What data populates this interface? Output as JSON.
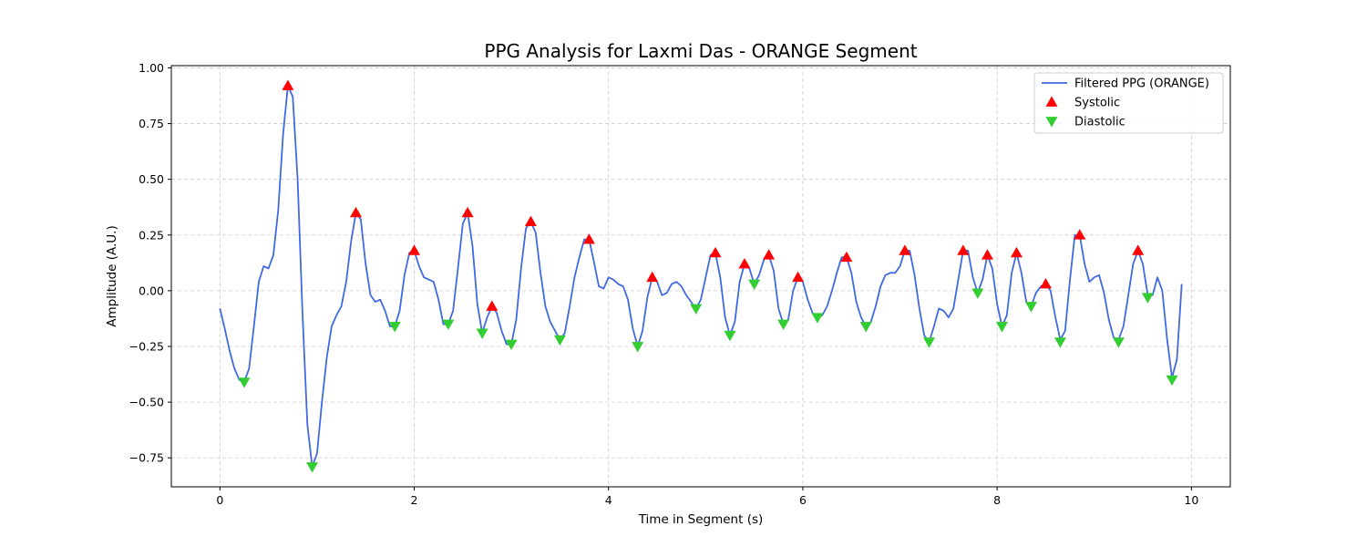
{
  "chart_data": {
    "type": "line",
    "title": "PPG Analysis for Laxmi Das - ORANGE Segment",
    "xlabel": "Time in Segment (s)",
    "ylabel": "Amplitude (A.U.)",
    "xlim": [
      -0.5,
      10.4
    ],
    "ylim": [
      -0.88,
      1.01
    ],
    "x_ticks": [
      0,
      2,
      4,
      6,
      8,
      10
    ],
    "x_tick_labels": [
      "0",
      "2",
      "4",
      "6",
      "8",
      "10"
    ],
    "y_ticks": [
      -0.75,
      -0.5,
      -0.25,
      0.0,
      0.25,
      0.5,
      0.75,
      1.0
    ],
    "y_tick_labels": [
      "−0.75",
      "−0.50",
      "−0.25",
      "0.00",
      "0.25",
      "0.50",
      "0.75",
      "1.00"
    ],
    "grid": true,
    "legend_position": "top-right",
    "series": [
      {
        "name": "Filtered PPG (ORANGE)",
        "kind": "line",
        "color": "#4169e1",
        "x": [
          0,
          0.05,
          0.1,
          0.15,
          0.2,
          0.25,
          0.3,
          0.35,
          0.4,
          0.45,
          0.5,
          0.55,
          0.6,
          0.65,
          0.7,
          0.75,
          0.8,
          0.85,
          0.9,
          0.95,
          1.0,
          1.05,
          1.1,
          1.15,
          1.2,
          1.25,
          1.3,
          1.35,
          1.4,
          1.45,
          1.5,
          1.55,
          1.6,
          1.65,
          1.7,
          1.75,
          1.8,
          1.85,
          1.9,
          1.95,
          2.0,
          2.05,
          2.1,
          2.15,
          2.2,
          2.25,
          2.3,
          2.35,
          2.4,
          2.45,
          2.5,
          2.55,
          2.6,
          2.65,
          2.7,
          2.75,
          2.8,
          2.85,
          2.9,
          2.95,
          3.0,
          3.05,
          3.1,
          3.15,
          3.2,
          3.25,
          3.3,
          3.35,
          3.4,
          3.45,
          3.5,
          3.55,
          3.6,
          3.65,
          3.7,
          3.75,
          3.8,
          3.85,
          3.9,
          3.95,
          4.0,
          4.05,
          4.1,
          4.15,
          4.2,
          4.25,
          4.3,
          4.35,
          4.4,
          4.45,
          4.5,
          4.55,
          4.6,
          4.65,
          4.7,
          4.75,
          4.8,
          4.85,
          4.9,
          4.95,
          5.0,
          5.05,
          5.1,
          5.15,
          5.2,
          5.25,
          5.3,
          5.35,
          5.4,
          5.45,
          5.5,
          5.55,
          5.6,
          5.65,
          5.7,
          5.75,
          5.8,
          5.85,
          5.9,
          5.95,
          6.0,
          6.05,
          6.1,
          6.15,
          6.2,
          6.25,
          6.3,
          6.35,
          6.4,
          6.45,
          6.5,
          6.55,
          6.6,
          6.65,
          6.7,
          6.75,
          6.8,
          6.85,
          6.9,
          6.95,
          7.0,
          7.05,
          7.1,
          7.15,
          7.2,
          7.25,
          7.3,
          7.35,
          7.4,
          7.45,
          7.5,
          7.55,
          7.6,
          7.65,
          7.7,
          7.75,
          7.8,
          7.85,
          7.9,
          7.95,
          8.0,
          8.05,
          8.1,
          8.15,
          8.2,
          8.25,
          8.3,
          8.35,
          8.4,
          8.45,
          8.5,
          8.55,
          8.6,
          8.65,
          8.7,
          8.75,
          8.8,
          8.85,
          8.9,
          8.95,
          9.0,
          9.05,
          9.1,
          9.15,
          9.2,
          9.25,
          9.3,
          9.35,
          9.4,
          9.45,
          9.5,
          9.55,
          9.6,
          9.65,
          9.7,
          9.75,
          9.8,
          9.85,
          9.9
        ],
        "y": [
          -0.08,
          -0.17,
          -0.27,
          -0.35,
          -0.4,
          -0.41,
          -0.35,
          -0.16,
          0.04,
          0.11,
          0.1,
          0.16,
          0.36,
          0.7,
          0.92,
          0.87,
          0.5,
          -0.1,
          -0.6,
          -0.79,
          -0.73,
          -0.5,
          -0.3,
          -0.16,
          -0.11,
          -0.07,
          0.04,
          0.22,
          0.35,
          0.32,
          0.12,
          -0.02,
          -0.05,
          -0.04,
          -0.09,
          -0.16,
          -0.16,
          -0.09,
          0.07,
          0.17,
          0.18,
          0.11,
          0.06,
          0.05,
          0.04,
          -0.04,
          -0.15,
          -0.15,
          -0.09,
          0.1,
          0.3,
          0.35,
          0.2,
          -0.06,
          -0.19,
          -0.12,
          -0.07,
          -0.1,
          -0.18,
          -0.24,
          -0.24,
          -0.13,
          0.1,
          0.28,
          0.31,
          0.26,
          0.08,
          -0.07,
          -0.14,
          -0.18,
          -0.22,
          -0.19,
          -0.07,
          0.06,
          0.15,
          0.23,
          0.23,
          0.13,
          0.02,
          0.01,
          0.06,
          0.05,
          0.03,
          0.02,
          -0.04,
          -0.17,
          -0.25,
          -0.18,
          -0.03,
          0.06,
          0.04,
          -0.02,
          -0.01,
          0.03,
          0.04,
          0.02,
          -0.02,
          -0.05,
          -0.08,
          -0.04,
          0.06,
          0.16,
          0.17,
          0.06,
          -0.12,
          -0.2,
          -0.14,
          0.04,
          0.12,
          0.1,
          0.03,
          0.07,
          0.14,
          0.16,
          0.09,
          -0.08,
          -0.15,
          -0.13,
          0.0,
          0.06,
          0.04,
          -0.04,
          -0.1,
          -0.12,
          -0.11,
          -0.07,
          0.0,
          0.08,
          0.15,
          0.15,
          0.08,
          -0.05,
          -0.12,
          -0.16,
          -0.14,
          -0.07,
          0.02,
          0.07,
          0.08,
          0.08,
          0.11,
          0.18,
          0.18,
          0.07,
          -0.08,
          -0.2,
          -0.23,
          -0.16,
          -0.08,
          -0.09,
          -0.12,
          -0.08,
          0.05,
          0.18,
          0.18,
          0.06,
          -0.01,
          0.05,
          0.16,
          0.1,
          -0.06,
          -0.16,
          -0.11,
          0.08,
          0.17,
          0.08,
          -0.05,
          -0.07,
          -0.01,
          0.02,
          0.03,
          0.0,
          -0.12,
          -0.22,
          -0.18,
          0.05,
          0.25,
          0.25,
          0.12,
          0.04,
          0.06,
          0.07,
          -0.01,
          -0.13,
          -0.21,
          -0.22,
          -0.16,
          -0.02,
          0.12,
          0.18,
          0.12,
          -0.02,
          -0.02,
          0.06,
          0.0,
          -0.22,
          -0.39,
          -0.31,
          0.03
        ]
      },
      {
        "name": "Systolic",
        "kind": "scatter",
        "marker": "triangle-up",
        "color": "#ff0000",
        "x": [
          0.7,
          1.4,
          2.0,
          2.55,
          2.8,
          3.2,
          3.8,
          4.45,
          5.1,
          5.4,
          5.65,
          5.95,
          6.45,
          7.05,
          7.65,
          7.9,
          8.2,
          8.5,
          8.85,
          9.45
        ],
        "y": [
          0.92,
          0.35,
          0.18,
          0.35,
          -0.07,
          0.31,
          0.23,
          0.06,
          0.17,
          0.12,
          0.16,
          0.06,
          0.15,
          0.18,
          0.18,
          0.16,
          0.17,
          0.03,
          0.25,
          0.18
        ]
      },
      {
        "name": "Diastolic",
        "kind": "scatter",
        "marker": "triangle-down",
        "color": "#32cd32",
        "x": [
          0.25,
          0.95,
          1.8,
          2.35,
          2.7,
          3.0,
          3.5,
          4.3,
          4.9,
          5.25,
          5.5,
          5.8,
          6.15,
          6.65,
          7.3,
          7.8,
          8.05,
          8.35,
          8.65,
          9.25,
          9.55,
          9.8
        ],
        "y": [
          -0.41,
          -0.79,
          -0.16,
          -0.15,
          -0.19,
          -0.24,
          -0.22,
          -0.25,
          -0.08,
          -0.2,
          0.03,
          -0.15,
          -0.12,
          -0.16,
          -0.23,
          -0.01,
          -0.16,
          -0.07,
          -0.23,
          -0.23,
          -0.03,
          -0.4
        ]
      }
    ]
  }
}
